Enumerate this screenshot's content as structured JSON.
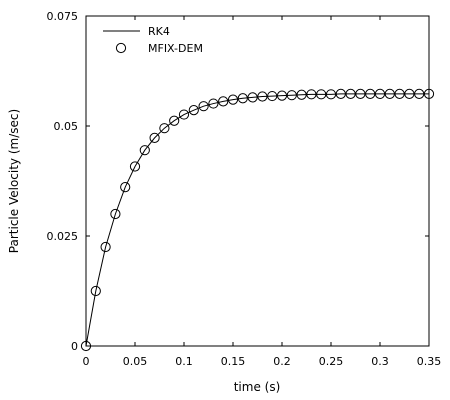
{
  "chart_data": {
    "type": "line",
    "title": "",
    "xlabel": "time (s)",
    "ylabel": "Particle Velocity (m/sec)",
    "xlim": [
      0,
      0.35
    ],
    "ylim": [
      0,
      0.075
    ],
    "xticks": [
      0,
      0.05,
      0.1,
      0.15,
      0.2,
      0.25,
      0.3,
      0.35
    ],
    "xtick_labels": [
      "0",
      "0.05",
      "0.1",
      "0.15",
      "0.2",
      "0.25",
      "0.3",
      "0.35"
    ],
    "yticks": [
      0,
      0.025,
      0.05,
      0.075
    ],
    "ytick_labels": [
      "0",
      "0.025",
      "0.05",
      "0.075"
    ],
    "grid": false,
    "legend": {
      "position": "top-left",
      "entries": [
        {
          "label": "RK4",
          "marker": "line"
        },
        {
          "label": "MFIX-DEM",
          "marker": "open-circle"
        }
      ]
    },
    "series": [
      {
        "name": "RK4",
        "style": "line",
        "color": "#000000",
        "x": [
          0,
          0.01,
          0.02,
          0.03,
          0.04,
          0.05,
          0.06,
          0.07,
          0.08,
          0.09,
          0.1,
          0.11,
          0.12,
          0.13,
          0.14,
          0.15,
          0.16,
          0.17,
          0.18,
          0.19,
          0.2,
          0.21,
          0.22,
          0.23,
          0.24,
          0.25,
          0.26,
          0.27,
          0.28,
          0.29,
          0.3,
          0.31,
          0.32,
          0.33,
          0.34,
          0.35
        ],
        "y": [
          0,
          0.0125,
          0.0225,
          0.03,
          0.0361,
          0.0408,
          0.0445,
          0.0473,
          0.0495,
          0.0512,
          0.0526,
          0.0536,
          0.0545,
          0.0551,
          0.0556,
          0.056,
          0.0563,
          0.0565,
          0.0567,
          0.0568,
          0.0569,
          0.057,
          0.0571,
          0.0572,
          0.0572,
          0.0572,
          0.0573,
          0.0573,
          0.0573,
          0.0573,
          0.0573,
          0.0573,
          0.0573,
          0.0573,
          0.0573,
          0.0573
        ]
      },
      {
        "name": "MFIX-DEM",
        "style": "open-circle",
        "color": "#000000",
        "x": [
          0,
          0.01,
          0.02,
          0.03,
          0.04,
          0.05,
          0.06,
          0.07,
          0.08,
          0.09,
          0.1,
          0.11,
          0.12,
          0.13,
          0.14,
          0.15,
          0.16,
          0.17,
          0.18,
          0.19,
          0.2,
          0.21,
          0.22,
          0.23,
          0.24,
          0.25,
          0.26,
          0.27,
          0.28,
          0.29,
          0.3,
          0.31,
          0.32,
          0.33,
          0.34,
          0.35
        ],
        "y": [
          0,
          0.0125,
          0.0225,
          0.03,
          0.0361,
          0.0408,
          0.0445,
          0.0473,
          0.0495,
          0.0512,
          0.0526,
          0.0536,
          0.0545,
          0.0551,
          0.0556,
          0.056,
          0.0563,
          0.0565,
          0.0567,
          0.0568,
          0.0569,
          0.057,
          0.0571,
          0.0572,
          0.0572,
          0.0572,
          0.0573,
          0.0573,
          0.0573,
          0.0573,
          0.0573,
          0.0573,
          0.0573,
          0.0573,
          0.0573,
          0.0573
        ]
      }
    ]
  }
}
